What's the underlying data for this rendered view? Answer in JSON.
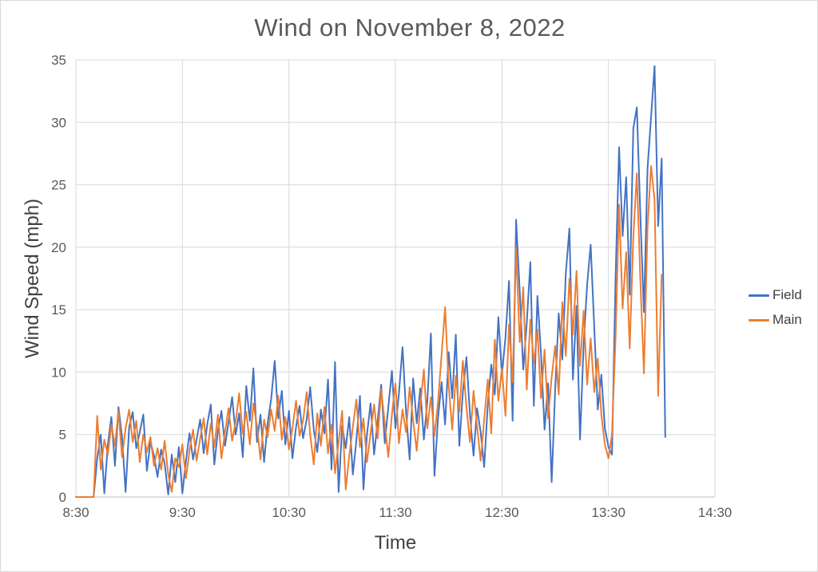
{
  "chart_data": {
    "type": "line",
    "title": "Wind on November 8, 2022",
    "xlabel": "Time",
    "ylabel": "Wind Speed (mph)",
    "grid": true,
    "legend_position": "right",
    "x_axis": {
      "tick_labels": [
        "8:30",
        "9:30",
        "10:30",
        "11:30",
        "12:30",
        "13:30",
        "14:30"
      ],
      "min_minutes": 510,
      "max_minutes": 870,
      "tick_step_minutes": 60
    },
    "y_axis": {
      "min": 0,
      "max": 35,
      "ticks": [
        0,
        5,
        10,
        15,
        20,
        25,
        30,
        35
      ]
    },
    "sampling": {
      "start_minute": 510,
      "step_minutes": 2,
      "units": "mph"
    },
    "style": {
      "gridline_color": "#d9d9d9",
      "axis_line_color": "#bfbfbf",
      "title_color": "#595959",
      "tick_color": "#595959",
      "axis_title_color": "#404040",
      "background": "#ffffff"
    },
    "series": [
      {
        "name": "Field",
        "color": "#4472C4",
        "values": [
          0,
          0,
          0,
          0,
          0,
          0,
          3.1,
          5,
          0.3,
          4.2,
          6.4,
          2.5,
          7.2,
          4.8,
          0.4,
          5.6,
          6.8,
          3.9,
          5.2,
          6.6,
          2.1,
          4.4,
          3.3,
          1.6,
          3.8,
          2.7,
          0.2,
          3.4,
          1.2,
          4,
          0.3,
          2.9,
          5.1,
          3,
          4.6,
          6.2,
          3.5,
          5.8,
          7.4,
          2.6,
          5.3,
          6.9,
          4.1,
          6,
          8,
          5,
          6.7,
          3.2,
          8.9,
          6.1,
          10.3,
          4.4,
          6.6,
          2.8,
          5.9,
          7.8,
          10.9,
          6.3,
          8.5,
          4.2,
          6.9,
          3.1,
          5.6,
          7.3,
          4.7,
          6.2,
          8.8,
          5.4,
          3.6,
          7,
          5.1,
          9.4,
          2.2,
          10.8,
          0.4,
          5.7,
          3.9,
          6.4,
          1.8,
          4.5,
          8.1,
          0.6,
          5,
          7.5,
          3.4,
          6.1,
          9,
          4.3,
          7.2,
          10.1,
          5.5,
          8.3,
          12,
          6.8,
          3,
          9.5,
          5.9,
          8.7,
          4.6,
          7.7,
          13.1,
          1.7,
          6.3,
          9.2,
          5.8,
          11.6,
          7.9,
          13,
          4.1,
          8.4,
          11.2,
          6.6,
          3.3,
          7.1,
          5.2,
          2.4,
          7.4,
          10.6,
          8.2,
          14.4,
          9.8,
          12.8,
          17.3,
          6.1,
          22.2,
          16.5,
          10.2,
          13.9,
          18.8,
          7.3,
          16.1,
          11.5,
          5.4,
          9.1,
          1.2,
          8.6,
          14.7,
          11,
          17.9,
          21.5,
          9.4,
          15.3,
          4.6,
          12.2,
          17,
          20.2,
          13.6,
          7,
          9.8,
          5.5,
          4,
          3.4,
          17.6,
          28,
          20.9,
          25.6,
          16.2,
          29.5,
          31.2,
          22.4,
          14.8,
          26.3,
          30.4,
          34.5,
          21.7,
          27.1,
          4.8
        ]
      },
      {
        "name": "Main",
        "color": "#ED7D31",
        "values": [
          0,
          0,
          0,
          0,
          0,
          0,
          6.5,
          2.2,
          4.6,
          3.4,
          5.8,
          4.1,
          6.9,
          3.2,
          5.5,
          7,
          4.4,
          6.1,
          2.8,
          5,
          3.6,
          4.8,
          2.5,
          3.9,
          2.2,
          4.5,
          1.8,
          0.4,
          3.1,
          2.4,
          4.2,
          1.5,
          3.7,
          5.4,
          2.9,
          4.7,
          6.3,
          3.4,
          5.9,
          4,
          6.6,
          3.1,
          5.2,
          7.1,
          4.5,
          6,
          8.3,
          5.1,
          6.8,
          4.2,
          7.5,
          5.7,
          3,
          6.2,
          4.8,
          7,
          5.3,
          8.1,
          4.6,
          6.4,
          3.8,
          5.5,
          7.7,
          4.9,
          6.1,
          8.4,
          5,
          2.6,
          6.7,
          4.1,
          7.2,
          3.5,
          5.8,
          1.9,
          4.4,
          6.9,
          0.6,
          3.3,
          5.6,
          7.8,
          4,
          6.3,
          2.8,
          5.1,
          7.4,
          4.7,
          8.6,
          5.9,
          3.2,
          6.6,
          9.1,
          4.3,
          7,
          5.2,
          8.8,
          6.1,
          3.7,
          7.3,
          10.2,
          5.5,
          8,
          4.9,
          7.6,
          11.4,
          15.2,
          8.9,
          5.4,
          9.7,
          6.8,
          10.9,
          7.2,
          4.4,
          8.5,
          5.7,
          2.9,
          6.2,
          9.4,
          5.1,
          12.6,
          7.7,
          10.3,
          6.5,
          13.8,
          9.2,
          19.9,
          12.4,
          16.8,
          8.6,
          14.2,
          10.7,
          13.4,
          7.9,
          11.8,
          6.3,
          9.6,
          12.1,
          8.2,
          15.6,
          11.3,
          17.5,
          13,
          18.1,
          10.5,
          14.9,
          9,
          12.7,
          8.4,
          11.1,
          6.6,
          4.2,
          3.1,
          5,
          12.8,
          23.4,
          15.1,
          19.6,
          11.9,
          20.8,
          25.9,
          17.2,
          9.9,
          21.6,
          26.5,
          23.8,
          8.1,
          17.8,
          null
        ]
      }
    ]
  }
}
